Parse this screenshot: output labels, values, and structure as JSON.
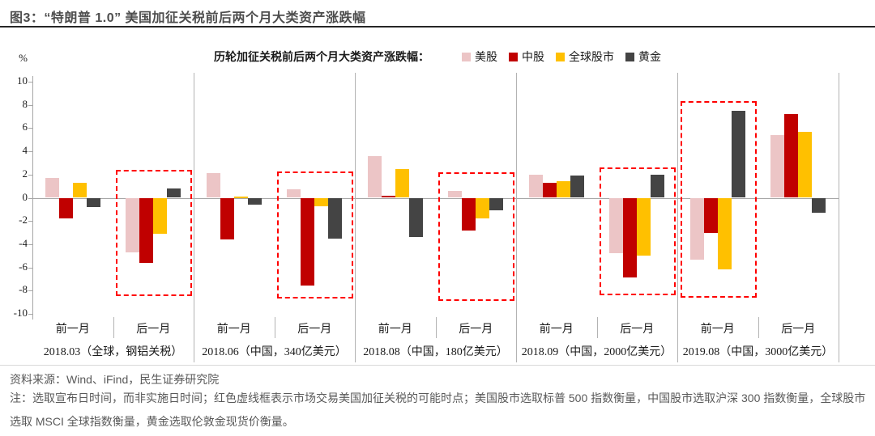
{
  "header": {
    "title": "图3：“特朗普 1.0” 美国加征关税前后两个月大类资产涨跌幅"
  },
  "legend": {
    "title": "历轮加征关税前后两个月大类资产涨跌幅：",
    "items": [
      {
        "label": "美股",
        "color": "#ECC5C6"
      },
      {
        "label": "中股",
        "color": "#C00000"
      },
      {
        "label": "全球股市",
        "color": "#FFC000"
      },
      {
        "label": "黄金",
        "color": "#444444"
      }
    ]
  },
  "chart_data": {
    "type": "bar",
    "unit_label": "%",
    "ylim": [
      -10,
      10
    ],
    "ytick_step": 2,
    "grid": false,
    "legend_position": "top",
    "series_names": [
      "美股",
      "中股",
      "全球股市",
      "黄金"
    ],
    "series_colors": [
      "#ECC5C6",
      "#C00000",
      "#FFC000",
      "#444444"
    ],
    "highlight_box_color": "#FF0000",
    "groups": [
      {
        "label": "2018.03（全球，钢铝关税）",
        "subgroups": [
          {
            "label": "前一月",
            "values": [
              1.7,
              -1.8,
              1.3,
              -0.8
            ],
            "boxed": false
          },
          {
            "label": "后一月",
            "values": [
              -4.7,
              -5.6,
              -3.1,
              0.8
            ],
            "boxed": true,
            "box_top": 2.4,
            "box_bottom": -8.2
          }
        ]
      },
      {
        "label": "2018.06（中国，340亿美元）",
        "subgroups": [
          {
            "label": "前一月",
            "values": [
              2.1,
              -3.6,
              0.1,
              -0.6
            ],
            "boxed": false
          },
          {
            "label": "后一月",
            "values": [
              0.7,
              -7.6,
              -0.7,
              -3.5
            ],
            "boxed": true,
            "box_top": 2.3,
            "box_bottom": -8.4
          }
        ]
      },
      {
        "label": "2018.08（中国，180亿美元）",
        "subgroups": [
          {
            "label": "前一月",
            "values": [
              3.6,
              0.2,
              2.5,
              -3.4
            ],
            "boxed": false
          },
          {
            "label": "后一月",
            "values": [
              0.6,
              -2.8,
              -1.8,
              -1.1
            ],
            "boxed": true,
            "box_top": 2.2,
            "box_bottom": -8.6
          }
        ]
      },
      {
        "label": "2018.09（中国，2000亿美元）",
        "subgroups": [
          {
            "label": "前一月",
            "values": [
              2.0,
              1.3,
              1.4,
              1.9
            ],
            "boxed": false
          },
          {
            "label": "后一月",
            "values": [
              -4.8,
              -6.9,
              -5.0,
              2.0
            ],
            "boxed": true,
            "box_top": 2.6,
            "box_bottom": -8.1
          }
        ]
      },
      {
        "label": "2019.08（中国，3000亿美元）",
        "subgroups": [
          {
            "label": "前一月",
            "values": [
              -5.3,
              -3.0,
              -6.2,
              7.5
            ],
            "boxed": true,
            "box_top": 8.3,
            "box_bottom": -8.3
          },
          {
            "label": "后一月",
            "values": [
              5.4,
              7.2,
              5.7,
              -1.3
            ],
            "boxed": false
          }
        ]
      }
    ]
  },
  "footer": {
    "source": "资料来源：Wind、iFind，民生证券研究院",
    "note": "注：选取宣布日时间，而非实施日时间；红色虚线框表示市场交易美国加征关税的可能时点；美国股市选取标普 500 指数衡量，中国股市选取沪深 300 指数衡量，全球股市选取 MSCI 全球指数衡量，黄金选取伦敦金现货价衡量。"
  }
}
